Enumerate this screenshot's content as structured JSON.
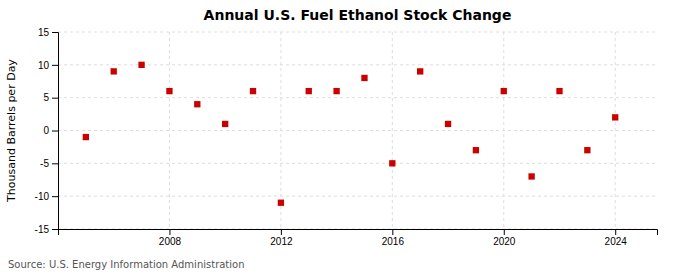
{
  "chart_data": {
    "type": "scatter",
    "title": "Annual U.S. Fuel Ethanol Stock Change",
    "ylabel": "Thousand Barrels per Day",
    "source": "Source: U.S. Energy Information Administration",
    "x": [
      2005,
      2006,
      2007,
      2008,
      2009,
      2010,
      2011,
      2012,
      2013,
      2014,
      2015,
      2016,
      2017,
      2018,
      2019,
      2020,
      2021,
      2022,
      2023,
      2024
    ],
    "values": [
      -1,
      9,
      10,
      6,
      4,
      1,
      6,
      -11,
      6,
      6,
      8,
      -5,
      9,
      1,
      -3,
      6,
      -7,
      6,
      -3,
      2
    ],
    "color": "#cc0000",
    "marker": "square",
    "xlim": [
      2004,
      2025.5
    ],
    "xticks": [
      2008,
      2012,
      2016,
      2020,
      2024
    ],
    "ylim": [
      -15,
      15
    ],
    "yticks": [
      -15,
      -10,
      -5,
      0,
      5,
      10,
      15
    ],
    "grid": true
  }
}
